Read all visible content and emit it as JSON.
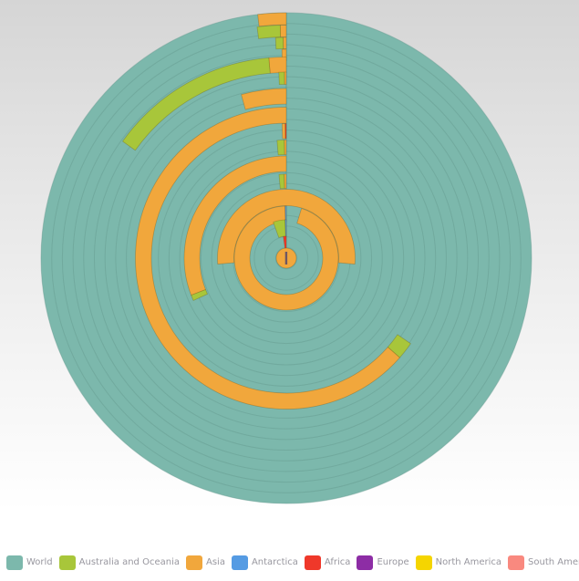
{
  "legend": {
    "items": [
      {
        "label": "World",
        "color": "#7cb8ac"
      },
      {
        "label": "Australia and Oceania",
        "color": "#a8c63a"
      },
      {
        "label": "Asia",
        "color": "#f1a73c"
      },
      {
        "label": "Antarctica",
        "color": "#559be3"
      },
      {
        "label": "Africa",
        "color": "#ef382a"
      },
      {
        "label": "Europe",
        "color": "#8d2da5"
      },
      {
        "label": "North America",
        "color": "#f5d500"
      },
      {
        "label": "South America",
        "color": "#f9897f"
      }
    ]
  },
  "chart_data": {
    "type": "radial-stacked-bar",
    "title": "",
    "angle_convention": "degrees counterclockwise from 12 o'clock",
    "center": {
      "x": 314,
      "y": 283
    },
    "outer_radius": 269,
    "grid": {
      "ring_count": 23,
      "color": "#639a8f",
      "opacity": 0.45
    },
    "axis_line": {
      "angle_deg": 0,
      "color": "#5d948a",
      "opacity": 0.75
    },
    "world_background": {
      "series": "World",
      "sweep_deg": 360
    },
    "colors": {
      "World": "#7cb8ac",
      "Australia and Oceania": "#a8c63a",
      "Asia": "#f1a73c",
      "Antarctica": "#559be3",
      "Africa": "#ef382a",
      "Europe": "#8d2da5",
      "North America": "#f5d500",
      "South America": "#f9897f"
    },
    "bands": [
      {
        "r0": 256.0,
        "r1": 269.0,
        "segments": [
          {
            "series": "Asia",
            "start": 0,
            "end": 6.7
          }
        ]
      },
      {
        "r0": 242.5,
        "r1": 255.5,
        "segments": [
          {
            "series": "Asia",
            "start": 0,
            "end": 1.5
          },
          {
            "series": "Australia and Oceania",
            "start": 1.5,
            "end": 7.2
          }
        ]
      },
      {
        "r0": 229.5,
        "r1": 242.0,
        "segments": [
          {
            "series": "Asia",
            "start": 0,
            "end": 0.8
          },
          {
            "series": "Australia and Oceania",
            "start": 0.8,
            "end": 2.8
          }
        ]
      },
      {
        "r0": 216.5,
        "r1": 229.0,
        "segments": [
          {
            "series": "Asia",
            "start": 0,
            "end": 1.2
          }
        ]
      },
      {
        "r0": 203.5,
        "r1": 220.5,
        "segments": [
          {
            "series": "Asia",
            "start": 0,
            "end": 5
          },
          {
            "series": "Australia and Oceania",
            "start": 5,
            "end": 54.5
          }
        ]
      },
      {
        "r0": 190.5,
        "r1": 204.0,
        "segments": [
          {
            "series": "Asia",
            "start": 0,
            "end": 0.6
          },
          {
            "series": "Australia and Oceania",
            "start": 0.6,
            "end": 2.3
          }
        ]
      },
      {
        "r0": 169.0,
        "r1": 186.0,
        "segments": [
          {
            "series": "Asia",
            "start": 0,
            "end": 15.4
          }
        ]
      },
      {
        "r0": 148.0,
        "r1": 165.5,
        "segments": [
          {
            "series": "Asia",
            "start": 0,
            "end": 228.8
          },
          {
            "series": "Australia and Oceania",
            "start": 228.8,
            "end": 235.5
          }
        ]
      },
      {
        "r0": 131.0,
        "r1": 147.5,
        "segments": [
          {
            "series": "Africa",
            "start": 0,
            "end": 0.5
          },
          {
            "series": "Asia",
            "start": 0.5,
            "end": 1.8
          }
        ]
      },
      {
        "r0": 113.5,
        "r1": 129.5,
        "segments": [
          {
            "series": "Asia",
            "start": 0,
            "end": 1
          },
          {
            "series": "Australia and Oceania",
            "start": 1,
            "end": 4.5
          }
        ]
      },
      {
        "r0": 95.0,
        "r1": 112.0,
        "segments": [
          {
            "series": "Asia",
            "start": 0,
            "end": 111.3
          },
          {
            "series": "Australia and Oceania",
            "start": 111.3,
            "end": 114.5
          }
        ]
      },
      {
        "r0": 76.5,
        "r1": 92.0,
        "segments": [
          {
            "series": "Asia",
            "start": 0,
            "end": 1.5
          },
          {
            "series": "Australia and Oceania",
            "start": 1.5,
            "end": 5
          }
        ]
      },
      {
        "r0": 57.5,
        "r1": 75.5,
        "segments": [
          {
            "series": "Asia",
            "start": -95,
            "end": 95
          }
        ]
      },
      {
        "r0": 40.0,
        "r1": 57.0,
        "segments": [
          {
            "series": "Antarctica",
            "start": 0,
            "end": 1.5
          },
          {
            "series": "Asia",
            "start": 1.5,
            "end": 343
          }
        ]
      },
      {
        "r0": 24.0,
        "r1": 42.0,
        "segments": [
          {
            "series": "Antarctica",
            "start": 0,
            "end": 2
          },
          {
            "series": "Australia and Oceania",
            "start": 2,
            "end": 20
          }
        ]
      },
      {
        "r0": 8.0,
        "r1": 24.0,
        "segments": [
          {
            "series": "Africa",
            "start": 0,
            "end": 8
          }
        ]
      }
    ],
    "center_dot": {
      "radius": 11,
      "series": "Asia"
    },
    "center_pointer": {
      "color": "#6f5863",
      "x": 312.7,
      "y": 276,
      "width": 2.4,
      "height": 14
    }
  }
}
